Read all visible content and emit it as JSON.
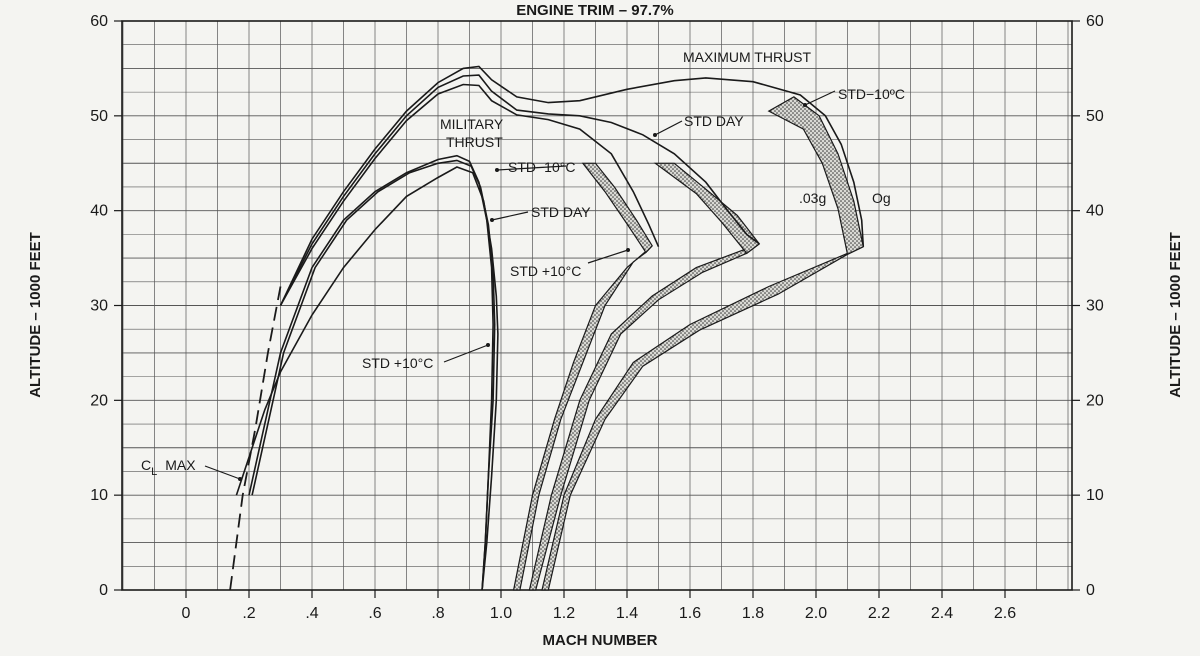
{
  "chart_data": {
    "type": "line",
    "title": "ENGINE TRIM  –  97.7%",
    "xlabel": "MACH NUMBER",
    "ylabel_left": "ALTITUDE  –  1000 FEET",
    "ylabel_right": "ALTITUDE  –  1000 FEET",
    "xlim": [
      -0.2,
      2.8
    ],
    "ylim": [
      0,
      60
    ],
    "x_ticks": [
      {
        "v": 0,
        "label": "0"
      },
      {
        "v": 0.2,
        "label": ".2"
      },
      {
        "v": 0.4,
        "label": ".4"
      },
      {
        "v": 0.6,
        "label": ".6"
      },
      {
        "v": 0.8,
        "label": ".8"
      },
      {
        "v": 1.0,
        "label": "1.0"
      },
      {
        "v": 1.2,
        "label": "1.2"
      },
      {
        "v": 1.4,
        "label": "1.4"
      },
      {
        "v": 1.6,
        "label": "1.6"
      },
      {
        "v": 1.8,
        "label": "1.8"
      },
      {
        "v": 2.0,
        "label": "2.0"
      },
      {
        "v": 2.2,
        "label": "2.2"
      },
      {
        "v": 2.4,
        "label": "2.4"
      },
      {
        "v": 2.6,
        "label": "2.6"
      }
    ],
    "y_ticks": [
      {
        "v": 0,
        "label": "0"
      },
      {
        "v": 10,
        "label": "10"
      },
      {
        "v": 20,
        "label": "20"
      },
      {
        "v": 30,
        "label": "30"
      },
      {
        "v": 40,
        "label": "40"
      },
      {
        "v": 50,
        "label": "50"
      },
      {
        "v": 60,
        "label": "60"
      }
    ],
    "grid": true,
    "series": [
      {
        "name": "MILITARY THRUST  STD -10°C",
        "points": [
          [
            0.2,
            10
          ],
          [
            0.3,
            25
          ],
          [
            0.4,
            34
          ],
          [
            0.5,
            39
          ],
          [
            0.6,
            42
          ],
          [
            0.7,
            44
          ],
          [
            0.8,
            45.4
          ],
          [
            0.86,
            45.8
          ],
          [
            0.9,
            45.2
          ],
          [
            0.93,
            43
          ],
          [
            0.955,
            39
          ],
          [
            0.97,
            34
          ],
          [
            0.975,
            28
          ],
          [
            0.97,
            20
          ],
          [
            0.96,
            12
          ],
          [
            0.95,
            5
          ],
          [
            0.94,
            0
          ]
        ]
      },
      {
        "name": "MILITARY THRUST  STD DAY",
        "points": [
          [
            0.21,
            10
          ],
          [
            0.31,
            25
          ],
          [
            0.41,
            34
          ],
          [
            0.51,
            39
          ],
          [
            0.61,
            42
          ],
          [
            0.71,
            44
          ],
          [
            0.8,
            45
          ],
          [
            0.86,
            45.3
          ],
          [
            0.905,
            44.7
          ],
          [
            0.935,
            42.5
          ],
          [
            0.96,
            38.5
          ],
          [
            0.975,
            33.5
          ],
          [
            0.98,
            28
          ],
          [
            0.975,
            20
          ],
          [
            0.96,
            12
          ],
          [
            0.95,
            5
          ],
          [
            0.94,
            0
          ]
        ]
      },
      {
        "name": "MILITARY THRUST  STD +10°C",
        "points": [
          [
            0.16,
            10
          ],
          [
            0.2,
            14
          ],
          [
            0.25,
            19
          ],
          [
            0.3,
            23
          ],
          [
            0.4,
            29
          ],
          [
            0.5,
            34
          ],
          [
            0.6,
            38
          ],
          [
            0.7,
            41.5
          ],
          [
            0.8,
            43.5
          ],
          [
            0.86,
            44.6
          ],
          [
            0.91,
            44
          ],
          [
            0.945,
            41
          ],
          [
            0.97,
            36
          ],
          [
            0.985,
            31
          ],
          [
            0.99,
            27
          ],
          [
            0.985,
            20
          ],
          [
            0.97,
            12
          ],
          [
            0.955,
            5
          ],
          [
            0.94,
            0
          ]
        ]
      },
      {
        "name": "MAXIMUM THRUST  STD -10°C",
        "points": [
          [
            0.3,
            30
          ],
          [
            0.4,
            37
          ],
          [
            0.5,
            42
          ],
          [
            0.6,
            46.5
          ],
          [
            0.7,
            50.5
          ],
          [
            0.8,
            53.5
          ],
          [
            0.88,
            55
          ],
          [
            0.93,
            55.2
          ],
          [
            0.97,
            53.8
          ],
          [
            1.05,
            52
          ],
          [
            1.15,
            51.4
          ],
          [
            1.25,
            51.6
          ],
          [
            1.4,
            52.8
          ],
          [
            1.55,
            53.7
          ],
          [
            1.65,
            54
          ],
          [
            1.8,
            53.6
          ],
          [
            1.95,
            52.2
          ],
          [
            2.03,
            50
          ],
          [
            2.08,
            47
          ],
          [
            2.12,
            43
          ],
          [
            2.145,
            39
          ],
          [
            2.15,
            36.2
          ]
        ]
      },
      {
        "name": "MAXIMUM THRUST  STD DAY",
        "points": [
          [
            0.3,
            30
          ],
          [
            0.4,
            36.5
          ],
          [
            0.5,
            41.5
          ],
          [
            0.6,
            46
          ],
          [
            0.7,
            50
          ],
          [
            0.8,
            53
          ],
          [
            0.88,
            54.2
          ],
          [
            0.93,
            54.3
          ],
          [
            0.97,
            52.6
          ],
          [
            1.05,
            50.6
          ],
          [
            1.15,
            50.2
          ],
          [
            1.25,
            50
          ],
          [
            1.35,
            49.3
          ],
          [
            1.45,
            48
          ],
          [
            1.55,
            46
          ],
          [
            1.65,
            43
          ],
          [
            1.72,
            40
          ],
          [
            1.78,
            37.5
          ],
          [
            1.82,
            36.5
          ]
        ]
      },
      {
        "name": "MAXIMUM THRUST  STD +10°C",
        "points": [
          [
            0.3,
            30
          ],
          [
            0.4,
            36
          ],
          [
            0.5,
            41
          ],
          [
            0.6,
            45.5
          ],
          [
            0.7,
            49.5
          ],
          [
            0.8,
            52.3
          ],
          [
            0.88,
            53.3
          ],
          [
            0.93,
            53.2
          ],
          [
            0.97,
            51.6
          ],
          [
            1.05,
            50.1
          ],
          [
            1.15,
            49.6
          ],
          [
            1.25,
            48.6
          ],
          [
            1.35,
            46
          ],
          [
            1.42,
            42
          ],
          [
            1.47,
            38.5
          ],
          [
            1.5,
            36.2
          ]
        ]
      }
    ],
    "cl_max_boundary": [
      [
        0.14,
        0
      ],
      [
        0.18,
        10
      ],
      [
        0.22,
        17
      ],
      [
        0.26,
        25
      ],
      [
        0.3,
        32
      ]
    ],
    "bands": [
      {
        "name": "0g–.03g STD +10°C",
        "outer": [
          [
            1.04,
            0
          ],
          [
            1.1,
            10
          ],
          [
            1.17,
            18
          ],
          [
            1.23,
            24
          ],
          [
            1.3,
            30
          ],
          [
            1.4,
            34
          ],
          [
            1.48,
            36.3
          ]
        ],
        "inner": [
          [
            1.06,
            0
          ],
          [
            1.12,
            10
          ],
          [
            1.19,
            18
          ],
          [
            1.26,
            24
          ],
          [
            1.33,
            30
          ],
          [
            1.42,
            34.6
          ],
          [
            1.46,
            35.6
          ]
        ],
        "upper": [
          [
            1.48,
            36.3
          ],
          [
            1.43,
            39
          ],
          [
            1.36,
            42.5
          ],
          [
            1.3,
            45
          ]
        ],
        "upper_inner": [
          [
            1.46,
            35.6
          ],
          [
            1.4,
            38.6
          ],
          [
            1.33,
            42
          ],
          [
            1.26,
            45
          ]
        ]
      },
      {
        "name": "0g–.03g STD DAY",
        "outer": [
          [
            1.09,
            0
          ],
          [
            1.16,
            10
          ],
          [
            1.25,
            20
          ],
          [
            1.35,
            27
          ],
          [
            1.48,
            31
          ],
          [
            1.62,
            34
          ],
          [
            1.82,
            36.5
          ]
        ],
        "inner": [
          [
            1.11,
            0
          ],
          [
            1.19,
            10
          ],
          [
            1.28,
            20
          ],
          [
            1.38,
            27
          ],
          [
            1.5,
            30.6
          ],
          [
            1.64,
            33.5
          ],
          [
            1.78,
            35.5
          ]
        ],
        "upper": [
          [
            1.82,
            36.5
          ],
          [
            1.75,
            39.5
          ],
          [
            1.66,
            42
          ],
          [
            1.55,
            45
          ]
        ],
        "upper_inner": [
          [
            1.78,
            35.5
          ],
          [
            1.7,
            38.8
          ],
          [
            1.62,
            41.8
          ],
          [
            1.49,
            45
          ]
        ]
      },
      {
        "name": "0g–.03g STD -10°C",
        "outer": [
          [
            1.13,
            0
          ],
          [
            1.2,
            10
          ],
          [
            1.3,
            18
          ],
          [
            1.42,
            24
          ],
          [
            1.6,
            28
          ],
          [
            1.85,
            32
          ],
          [
            2.15,
            36.2
          ]
        ],
        "inner": [
          [
            1.15,
            0
          ],
          [
            1.22,
            10
          ],
          [
            1.33,
            18
          ],
          [
            1.45,
            23.6
          ],
          [
            1.63,
            27.4
          ],
          [
            1.88,
            31.2
          ],
          [
            2.1,
            35.4
          ]
        ],
        "upper": [
          [
            2.15,
            36.2
          ],
          [
            2.12,
            41
          ],
          [
            2.07,
            46
          ],
          [
            2.01,
            50
          ],
          [
            1.93,
            52
          ]
        ],
        "upper_inner": [
          [
            2.1,
            35.4
          ],
          [
            2.07,
            40.2
          ],
          [
            2.02,
            45
          ],
          [
            1.96,
            48.6
          ],
          [
            1.85,
            50.5
          ]
        ]
      }
    ],
    "annotations": {
      "max_thrust": "MAXIMUM THRUST",
      "mil_thrust_1": "MILITARY",
      "mil_thrust_2": "THRUST",
      "std_minus10_mil": "STD−10°C",
      "std_day_mil": "STD DAY",
      "std_plus10_mil": "STD +10°C",
      "std_minus10_max": "STD−10ºC",
      "std_day_max": "STD DAY",
      "std_plus10_max": "STD +10°C",
      "g03": ".03g",
      "g0": "Og",
      "cl": "C",
      "cl_sub": "L",
      "cl_max": "MAX"
    }
  }
}
